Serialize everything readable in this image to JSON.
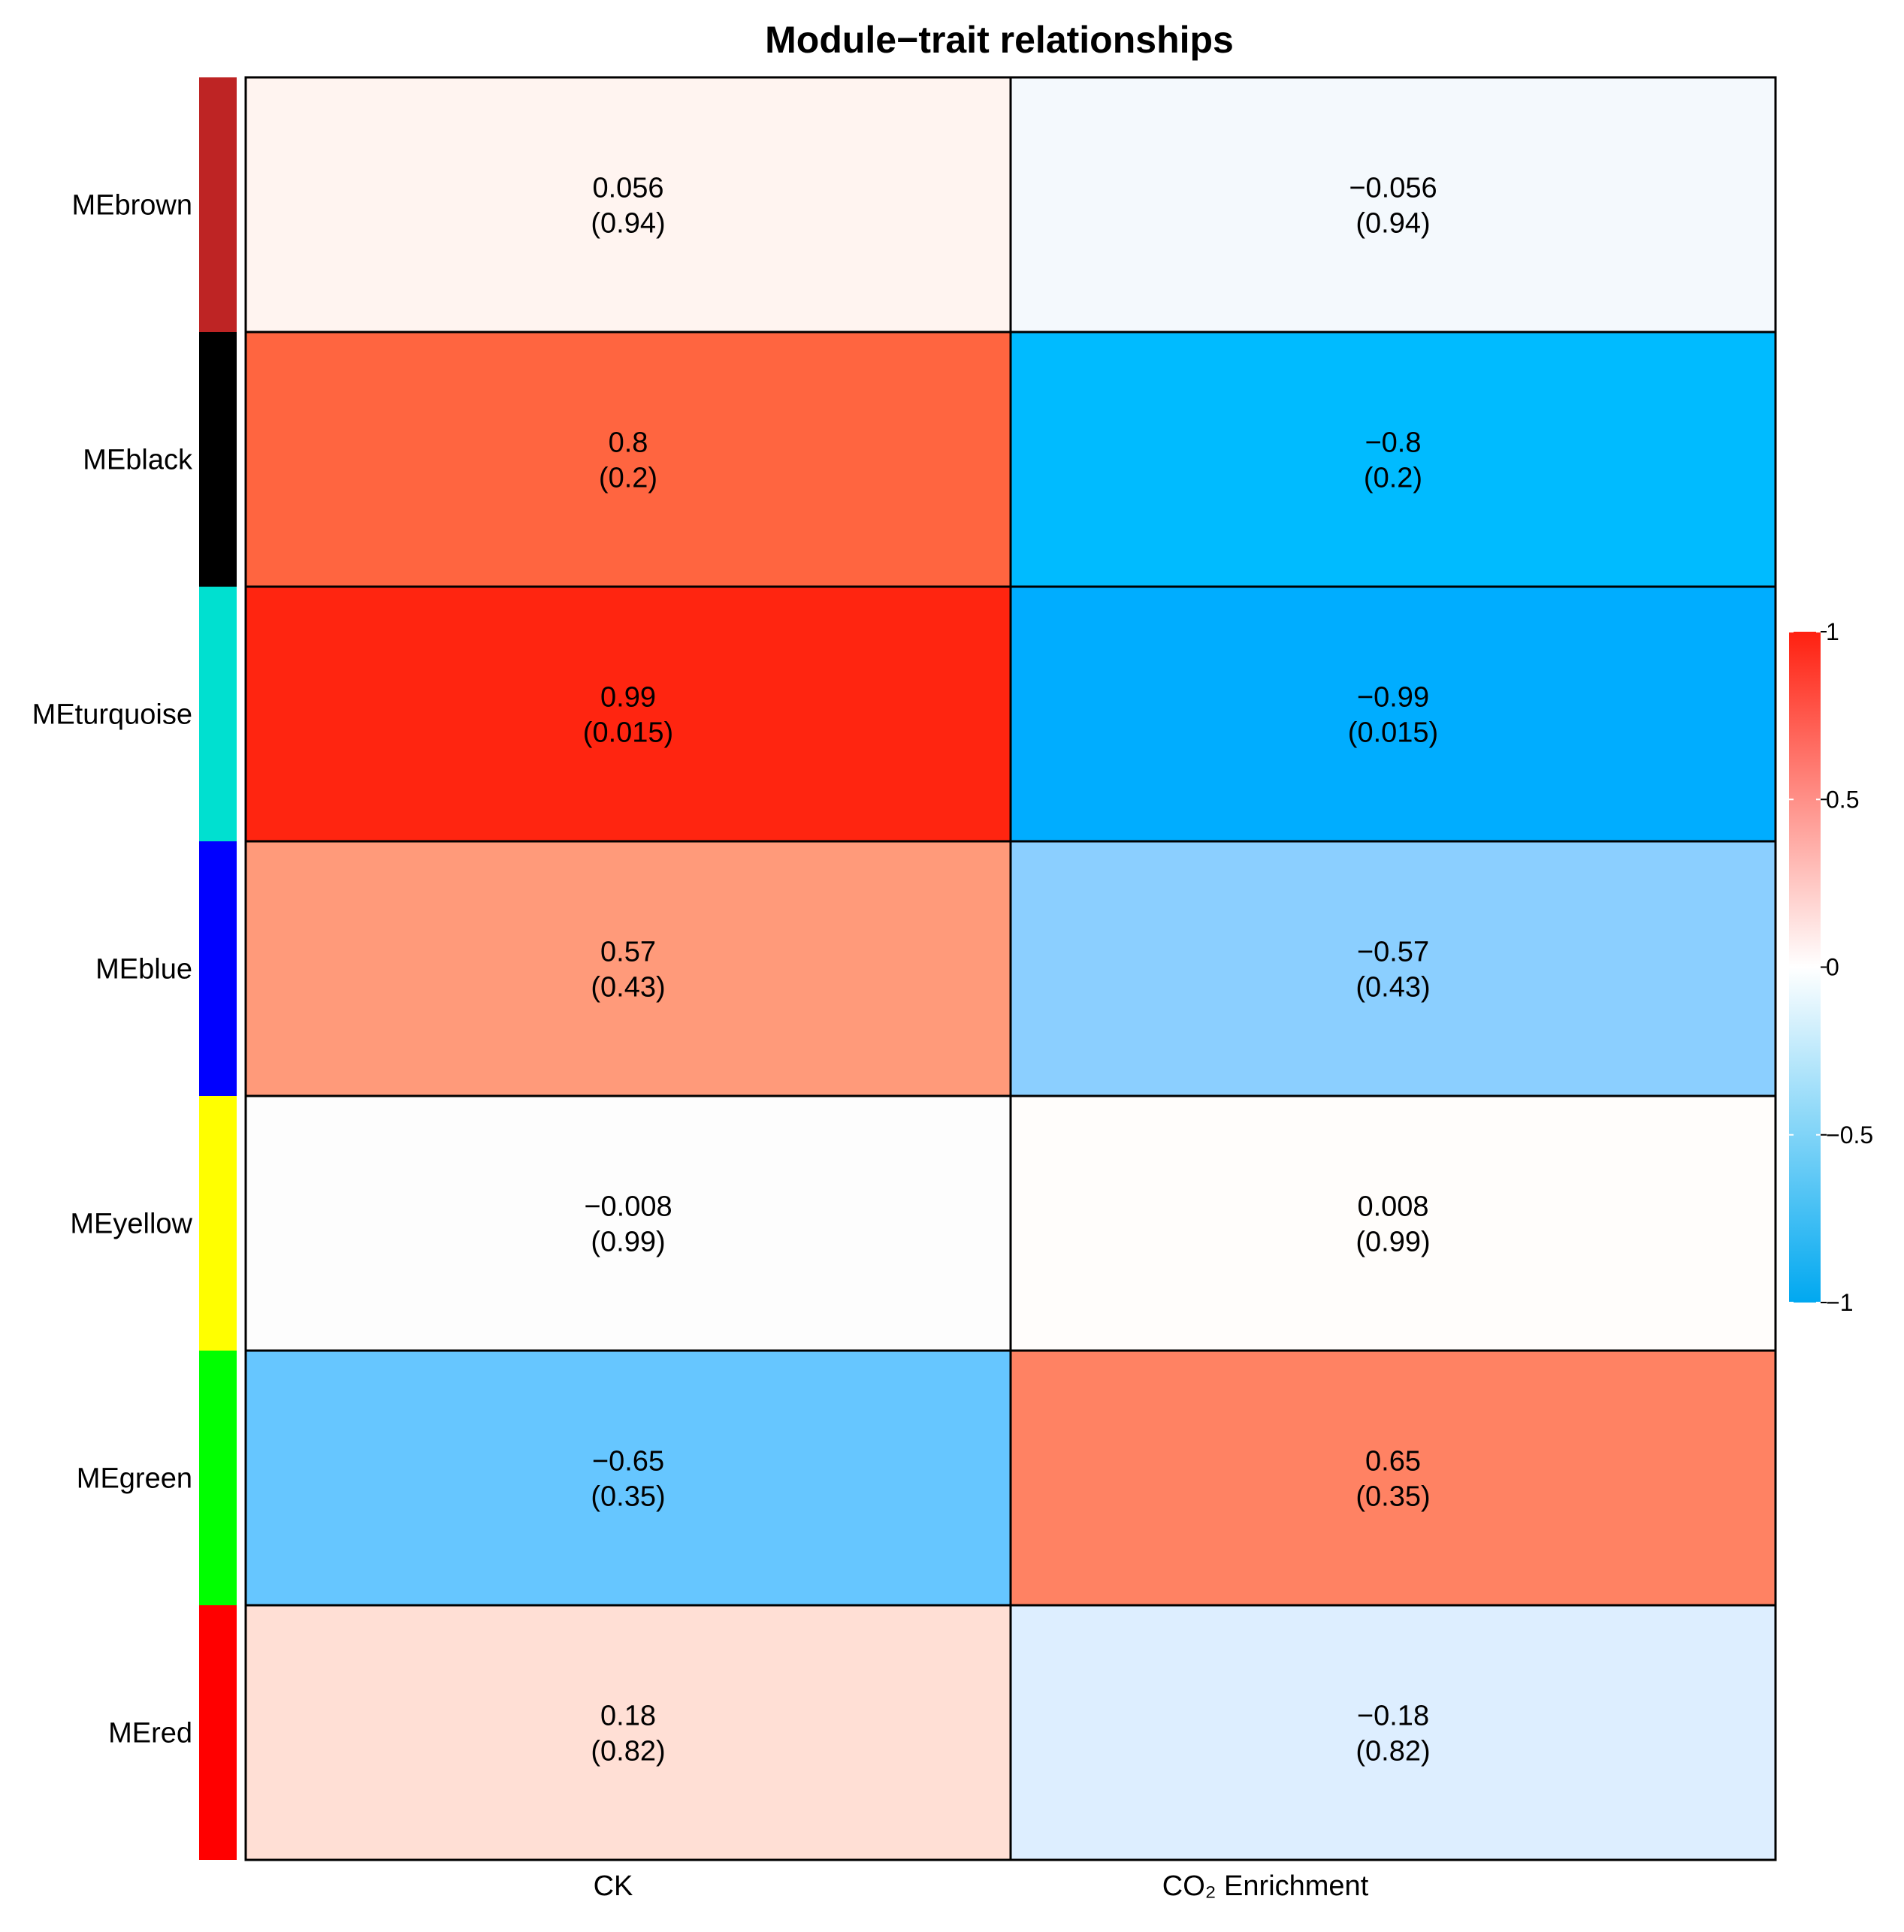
{
  "chart_data": {
    "type": "heatmap",
    "title": "Module−trait relationships",
    "columns": [
      "CK",
      "CO₂ Enrichment"
    ],
    "rows": [
      {
        "label": "MEbrown",
        "module_color": "#BE2424",
        "values": [
          0.056,
          -0.056
        ],
        "value_labels": [
          "0.056",
          "−0.056"
        ],
        "pvalue_labels": [
          "(0.94)",
          "(0.94)"
        ]
      },
      {
        "label": "MEblack",
        "module_color": "#000000",
        "values": [
          0.8,
          -0.8
        ],
        "value_labels": [
          "0.8",
          "−0.8"
        ],
        "pvalue_labels": [
          "(0.2)",
          "(0.2)"
        ]
      },
      {
        "label": "MEturquoise",
        "module_color": "#00E0D0",
        "values": [
          0.99,
          -0.99
        ],
        "value_labels": [
          "0.99",
          "−0.99"
        ],
        "pvalue_labels": [
          "(0.015)",
          "(0.015)"
        ]
      },
      {
        "label": "MEblue",
        "module_color": "#0000FF",
        "values": [
          0.57,
          -0.57
        ],
        "value_labels": [
          "0.57",
          "−0.57"
        ],
        "pvalue_labels": [
          "(0.43)",
          "(0.43)"
        ]
      },
      {
        "label": "MEyellow",
        "module_color": "#FFFF00",
        "values": [
          -0.008,
          0.008
        ],
        "value_labels": [
          "−0.008",
          "0.008"
        ],
        "pvalue_labels": [
          "(0.99)",
          "(0.99)"
        ]
      },
      {
        "label": "MEgreen",
        "module_color": "#00FF00",
        "values": [
          -0.65,
          0.65
        ],
        "value_labels": [
          "−0.65",
          "0.65"
        ],
        "pvalue_labels": [
          "(0.35)",
          "(0.35)"
        ]
      },
      {
        "label": "MEred",
        "module_color": "#FF0000",
        "values": [
          0.18,
          -0.18
        ],
        "value_labels": [
          "0.18",
          "−0.18"
        ],
        "pvalue_labels": [
          "(0.82)",
          "(0.82)"
        ]
      }
    ],
    "cell_colors": [
      [
        "#FFF4F0",
        "#F4F9FD"
      ],
      [
        "#FF6540",
        "#00BBFF"
      ],
      [
        "#FF2510",
        "#00ADFF"
      ],
      [
        "#FF9A7A",
        "#8BCFFF"
      ],
      [
        "#FDFDFD",
        "#FFFDFB"
      ],
      [
        "#66C6FF",
        "#FF8263"
      ],
      [
        "#FFDFD5",
        "#DDEEFF"
      ]
    ],
    "colorbar": {
      "range": [
        -1,
        1
      ],
      "ticks": [
        1,
        0.5,
        0,
        -0.5,
        -1
      ],
      "tick_labels": [
        "1",
        "0.5",
        "0",
        "−0.5",
        "−1"
      ],
      "colors": {
        "low": "#00A8F0",
        "mid": "#FFFFFF",
        "high": "#FF2010"
      }
    },
    "legend_position": "right"
  }
}
